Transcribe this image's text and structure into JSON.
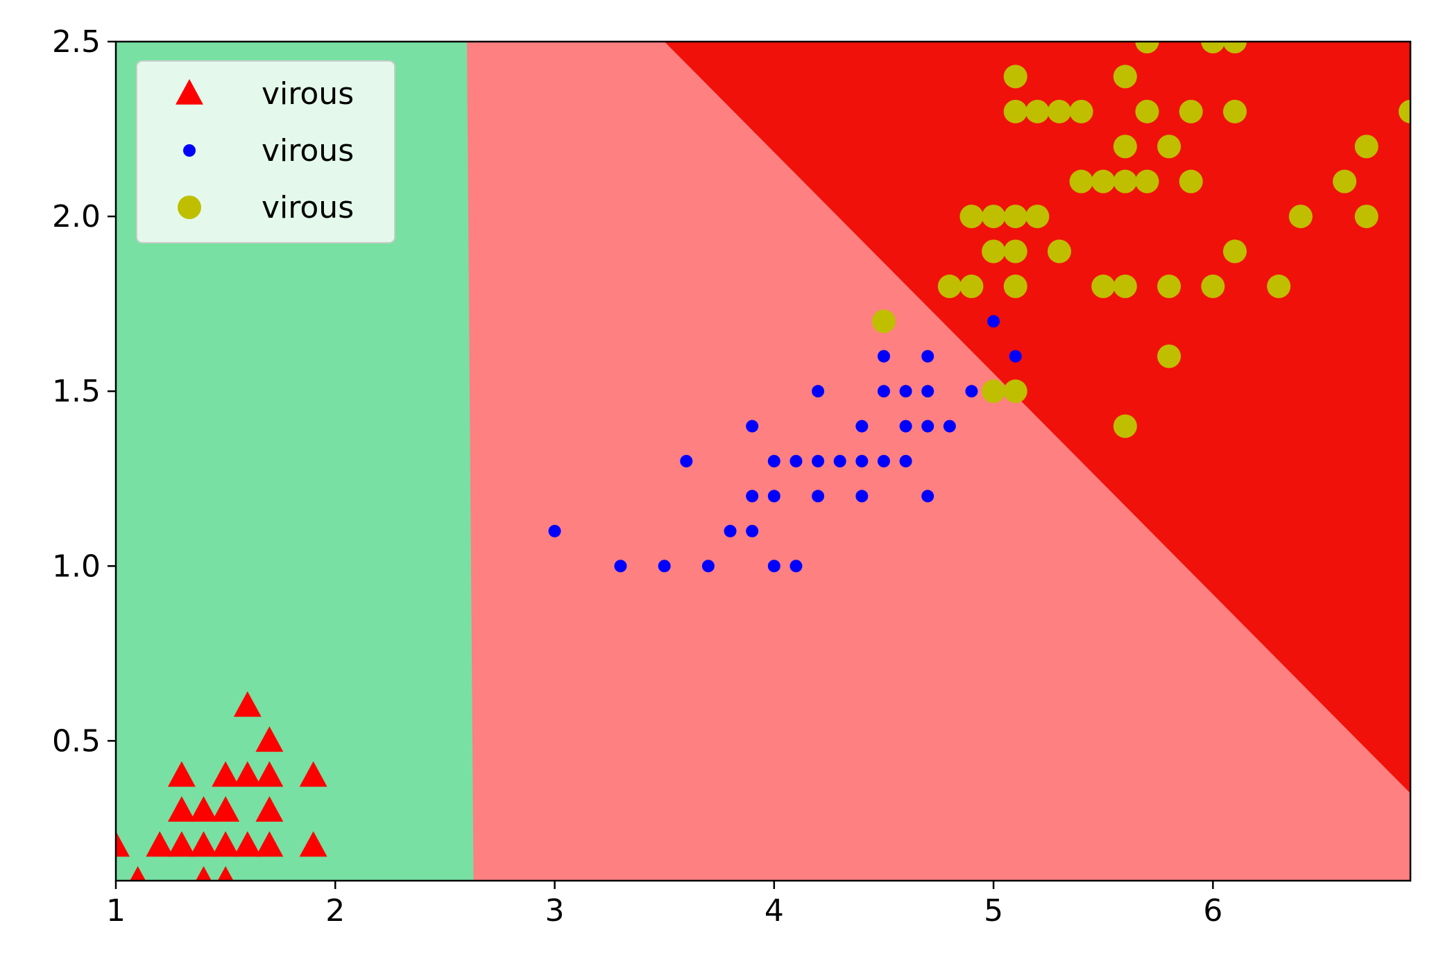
{
  "chart_data": {
    "type": "scatter",
    "title": "",
    "xlabel": "",
    "ylabel": "",
    "xlim": [
      1.0,
      6.9
    ],
    "ylim": [
      0.1,
      2.5
    ],
    "xticks": [
      1,
      2,
      3,
      4,
      5,
      6
    ],
    "xtick_labels": [
      "1",
      "2",
      "3",
      "4",
      "5",
      "6"
    ],
    "yticks": [
      0.5,
      1.0,
      1.5,
      2.0,
      2.5
    ],
    "ytick_labels": [
      "0.5",
      "1.0",
      "1.5",
      "2.0",
      "2.5"
    ],
    "grid": false,
    "legend": {
      "position": "top-left"
    },
    "regions": [
      {
        "color": "#77e0a2",
        "boundary_x": [
          2.6,
          2.63
        ],
        "boundary_y": [
          2.5,
          0.1
        ],
        "side": "left"
      },
      {
        "color": "#ff8080",
        "description_boundary": "between"
      },
      {
        "color": "#f0110a",
        "boundary_line": {
          "x0": 3.5,
          "y0": 2.5,
          "x1": 6.9,
          "y1": 0.35
        }
      }
    ],
    "series": [
      {
        "name": "virous",
        "marker": "triangle",
        "color": "#ff0000",
        "points": [
          [
            1.0,
            0.2
          ],
          [
            1.1,
            0.1
          ],
          [
            1.2,
            0.2
          ],
          [
            1.3,
            0.2
          ],
          [
            1.3,
            0.3
          ],
          [
            1.3,
            0.4
          ],
          [
            1.4,
            0.1
          ],
          [
            1.4,
            0.2
          ],
          [
            1.4,
            0.3
          ],
          [
            1.5,
            0.1
          ],
          [
            1.5,
            0.2
          ],
          [
            1.5,
            0.3
          ],
          [
            1.5,
            0.4
          ],
          [
            1.6,
            0.2
          ],
          [
            1.6,
            0.4
          ],
          [
            1.6,
            0.6
          ],
          [
            1.7,
            0.2
          ],
          [
            1.7,
            0.3
          ],
          [
            1.7,
            0.4
          ],
          [
            1.7,
            0.5
          ],
          [
            1.9,
            0.2
          ],
          [
            1.9,
            0.4
          ]
        ]
      },
      {
        "name": "virous",
        "marker": "small-dot",
        "color": "#0000ff",
        "points": [
          [
            3.0,
            1.1
          ],
          [
            3.3,
            1.0
          ],
          [
            3.5,
            1.0
          ],
          [
            3.6,
            1.3
          ],
          [
            3.7,
            1.0
          ],
          [
            3.8,
            1.1
          ],
          [
            3.9,
            1.1
          ],
          [
            3.9,
            1.2
          ],
          [
            3.9,
            1.4
          ],
          [
            4.0,
            1.0
          ],
          [
            4.0,
            1.2
          ],
          [
            4.0,
            1.3
          ],
          [
            4.1,
            1.0
          ],
          [
            4.1,
            1.3
          ],
          [
            4.2,
            1.2
          ],
          [
            4.2,
            1.3
          ],
          [
            4.2,
            1.5
          ],
          [
            4.3,
            1.3
          ],
          [
            4.4,
            1.2
          ],
          [
            4.4,
            1.3
          ],
          [
            4.4,
            1.4
          ],
          [
            4.5,
            1.3
          ],
          [
            4.5,
            1.5
          ],
          [
            4.5,
            1.6
          ],
          [
            4.6,
            1.3
          ],
          [
            4.6,
            1.4
          ],
          [
            4.6,
            1.5
          ],
          [
            4.7,
            1.2
          ],
          [
            4.7,
            1.4
          ],
          [
            4.7,
            1.5
          ],
          [
            4.7,
            1.6
          ],
          [
            4.8,
            1.4
          ],
          [
            4.9,
            1.5
          ],
          [
            5.0,
            1.7
          ],
          [
            5.1,
            1.6
          ]
        ]
      },
      {
        "name": "virous",
        "marker": "large-dot",
        "color": "#bfbf00",
        "points": [
          [
            4.5,
            1.7
          ],
          [
            4.8,
            1.8
          ],
          [
            4.9,
            1.8
          ],
          [
            4.9,
            2.0
          ],
          [
            5.0,
            1.5
          ],
          [
            5.0,
            1.9
          ],
          [
            5.0,
            2.0
          ],
          [
            5.1,
            1.5
          ],
          [
            5.1,
            1.8
          ],
          [
            5.1,
            1.9
          ],
          [
            5.1,
            2.0
          ],
          [
            5.1,
            2.3
          ],
          [
            5.1,
            2.4
          ],
          [
            5.2,
            2.0
          ],
          [
            5.2,
            2.3
          ],
          [
            5.3,
            1.9
          ],
          [
            5.3,
            2.3
          ],
          [
            5.4,
            2.1
          ],
          [
            5.4,
            2.3
          ],
          [
            5.5,
            1.8
          ],
          [
            5.5,
            2.1
          ],
          [
            5.6,
            1.4
          ],
          [
            5.6,
            1.8
          ],
          [
            5.6,
            2.1
          ],
          [
            5.6,
            2.2
          ],
          [
            5.6,
            2.4
          ],
          [
            5.7,
            2.1
          ],
          [
            5.7,
            2.3
          ],
          [
            5.7,
            2.5
          ],
          [
            5.8,
            1.6
          ],
          [
            5.8,
            1.8
          ],
          [
            5.8,
            2.2
          ],
          [
            5.9,
            2.1
          ],
          [
            5.9,
            2.3
          ],
          [
            6.0,
            1.8
          ],
          [
            6.0,
            2.5
          ],
          [
            6.1,
            1.9
          ],
          [
            6.1,
            2.3
          ],
          [
            6.1,
            2.5
          ],
          [
            6.3,
            1.8
          ],
          [
            6.4,
            2.0
          ],
          [
            6.6,
            2.1
          ],
          [
            6.7,
            2.0
          ],
          [
            6.7,
            2.2
          ],
          [
            6.9,
            2.3
          ]
        ]
      }
    ]
  }
}
